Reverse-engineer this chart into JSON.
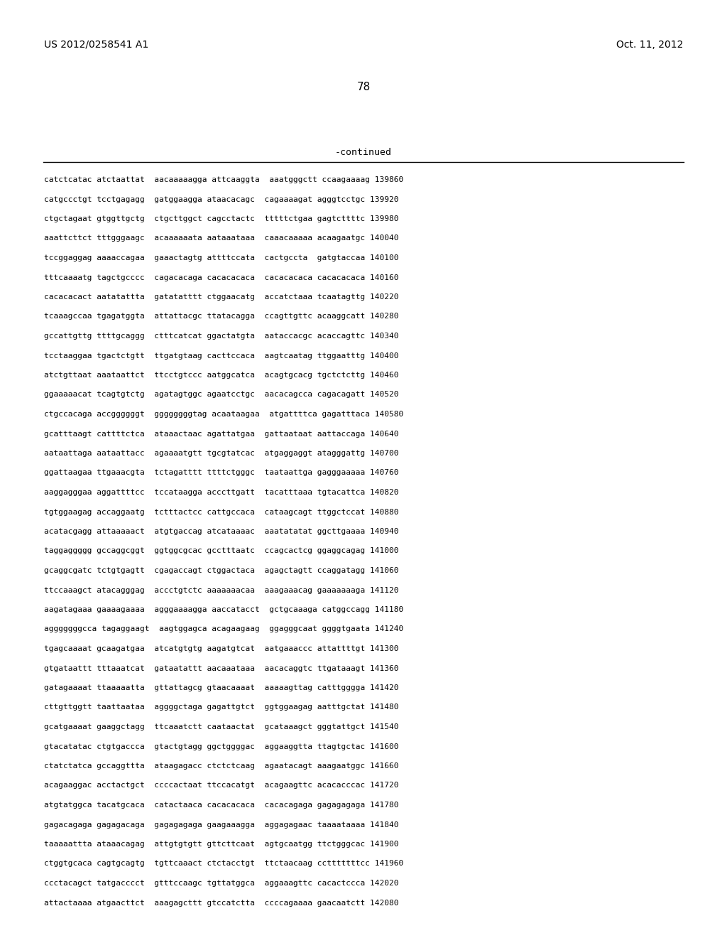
{
  "patent_number": "US 2012/0258541 A1",
  "date": "Oct. 11, 2012",
  "page_number": "78",
  "continued_label": "-continued",
  "background_color": "#ffffff",
  "text_color": "#000000",
  "sequence_lines": [
    "catctcatac atctaattat  aacaaaaagga attcaaggta  aaatgggctt ccaagaaaag 139860",
    "catgccctgt tcctgagagg  gatggaagga ataacacagc  cagaaaagat agggtcctgc 139920",
    "ctgctagaat gtggttgctg  ctgcttggct cagcctactc  tttttctgaa gagtcttttc 139980",
    "aaattcttct tttgggaagc  acaaaaaata aataaataaa  caaacaaaaa acaagaatgc 140040",
    "tccggaggag aaaaccagaa  gaaactagtg attttccata  cactgccta  gatgtaccaa 140100",
    "tttcaaaatg tagctgcccc  cagacacaga cacacacaca  cacacacaca cacacacaca 140160",
    "cacacacact aatatattta  gatatatttt ctggaacatg  accatctaaa tcaatagttg 140220",
    "tcaaagccaa tgagatggta  attattacgc ttatacagga  ccagttgttc acaaggcatt 140280",
    "gccattgttg ttttgcaggg  ctttcatcat ggactatgta  aataccacgc acaccagttc 140340",
    "tcctaaggaa tgactctgtt  ttgatgtaag cacttccaca  aagtcaatag ttggaatttg 140400",
    "atctgttaat aaataattct  ttcctgtccc aatggcatca  acagtgcacg tgctctcttg 140460",
    "ggaaaaacat tcagtgtctg  agatagtggc agaatcctgc  aacacagcca cagacagatt 140520",
    "ctgccacaga accggggggt  ggggggggtag acaataagaa  atgattttca gagatttaca 140580",
    "gcatttaagt cattttctca  ataaactaac agattatgaa  gattaataat aattaccaga 140640",
    "aataattaga aataattacc  agaaaatgtt tgcgtatcac  atgaggaggt atagggattg 140700",
    "ggattaagaa ttgaaacgta  tctagatttt ttttctgggc  taataattga gagggaaaaa 140760",
    "aaggagggaa aggattttcc  tccataagga acccttgatt  tacatttaaa tgtacattca 140820",
    "tgtggaagag accaggaatg  tctttactcc cattgccaca  cataagcagt ttggctccat 140880",
    "acatacgagg attaaaaact  atgtgaccag atcataaaac  aaatatatat ggcttgaaaa 140940",
    "taggaggggg gccaggcggt  ggtggcgcac gcctttaatc  ccagcactcg ggaggcagag 141000",
    "gcaggcgatc tctgtgagtt  cgagaccagt ctggactaca  agagctagtt ccaggatagg 141060",
    "ttccaaagct atacagggag  accctgtctc aaaaaaacaa  aaagaaacag gaaaaaaaga 141120",
    "aagatagaaa gaaaagaaaa  agggaaaagga aaccatacct  gctgcaaaga catggccagg 141180",
    "agggggggcca tagaggaagt  aagtggagca acagaagaag  ggagggcaat ggggtgaata 141240",
    "tgagcaaaat gcaagatgaa  atcatgtgtg aagatgtcat  aatgaaaccc attattttgt 141300",
    "gtgataattt tttaaatcat  gataatattt aacaaataaa  aacacaggtc ttgataaagt 141360",
    "gatagaaaat ttaaaaatta  gttattagcg gtaacaaaat  aaaaagttag catttgggga 141420",
    "cttgttggtt taattaataa  aggggctaga gagattgtct  ggtggaagag aatttgctat 141480",
    "gcatgaaaat gaaggctagg  ttcaaatctt caataactat  gcataaagct gggtattgct 141540",
    "gtacatatac ctgtgaccca  gtactgtagg ggctggggac  aggaaggtta ttagtgctac 141600",
    "ctatctatca gccaggttta  ataagagacc ctctctcaag  agaatacagt aaagaatggc 141660",
    "acagaaggac acctactgct  ccccactaat ttccacatgt  acagaagttc acacacccac 141720",
    "atgtatggca tacatgcaca  catactaaca cacacacaca  cacacagaga gagagagaga 141780",
    "gagacagaga gagagacaga  gagagagaga gaagaaagga  aggagagaac taaaataaaa 141840",
    "taaaaattta ataaacagag  attgtgtgtt gttcttcaat  agtgcaatgg ttctgggcac 141900",
    "ctggtgcaca cagtgcagtg  tgttcaaact ctctacctgt  ttctaacaag cctttttttcc 141960",
    "ccctacagct tatgacccct  gtttccaagc tgttatggca  aggaaagttc cacactccca 142020",
    "attactaaaa atgaacttct  aaagagcttt gtccatctta  ccccagaaaa gaacaatctt 142080"
  ]
}
